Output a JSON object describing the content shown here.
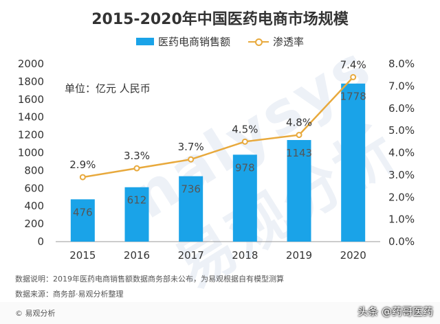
{
  "chart_data": {
    "type": "bar",
    "title": "2015-2020年中国医药电商市场规模",
    "unit_label": "单位：亿元 人民币",
    "categories": [
      "2015",
      "2016",
      "2017",
      "2018",
      "2019",
      "2020"
    ],
    "series": [
      {
        "name": "医药电商销售额",
        "kind": "bar",
        "axis": "left",
        "values": [
          476,
          612,
          736,
          978,
          1143,
          1778
        ],
        "color": "#1aa3e8"
      },
      {
        "name": "渗透率",
        "kind": "line",
        "axis": "right",
        "values": [
          2.9,
          3.3,
          3.7,
          4.5,
          4.8,
          7.4
        ],
        "value_labels": [
          "2.9%",
          "3.3%",
          "3.7%",
          "4.5%",
          "4.8%",
          "7.4%"
        ],
        "color": "#e8a93c"
      }
    ],
    "ylim_left": [
      0,
      2000
    ],
    "yticks_left": [
      0,
      200,
      400,
      600,
      800,
      1000,
      1200,
      1400,
      1600,
      1800,
      2000
    ],
    "ylim_right": [
      0,
      8
    ],
    "yticks_right": [
      "0.0%",
      "1.0%",
      "2.0%",
      "3.0%",
      "4.0%",
      "5.0%",
      "6.0%",
      "7.0%",
      "8.0%"
    ],
    "legend_position": "top-center",
    "grid": false
  },
  "watermark": "nalysys 易观分析",
  "footnotes": {
    "data_note": "数据说明：2019年医药电商销售额数据商务部未公布，为易观根据自有模型测算",
    "data_source": "数据来源：商务部·易观分析整理"
  },
  "brand": "© 易观分析",
  "credit": "头条 @药哥医药"
}
